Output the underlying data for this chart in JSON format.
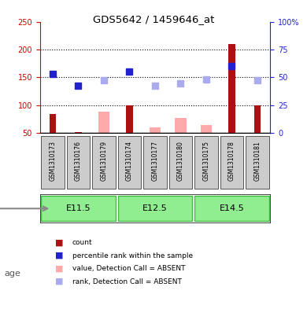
{
  "title": "GDS5642 / 1459646_at",
  "samples": [
    "GSM1310173",
    "GSM1310176",
    "GSM1310179",
    "GSM1310174",
    "GSM1310177",
    "GSM1310180",
    "GSM1310175",
    "GSM1310178",
    "GSM1310181"
  ],
  "age_groups": [
    {
      "label": "E11.5",
      "start": 0,
      "end": 3
    },
    {
      "label": "E12.5",
      "start": 3,
      "end": 6
    },
    {
      "label": "E14.5",
      "start": 6,
      "end": 9
    }
  ],
  "count_values": [
    85,
    52,
    50,
    100,
    50,
    50,
    50,
    210,
    100
  ],
  "count_color": "#aa1111",
  "percentile_values": [
    157,
    135,
    null,
    160,
    null,
    null,
    null,
    170,
    null
  ],
  "percentile_color": "#2222cc",
  "absent_value_values": [
    null,
    null,
    88,
    null,
    60,
    78,
    65,
    null,
    null
  ],
  "absent_value_color": "#ffaaaa",
  "absent_rank_values": [
    null,
    null,
    145,
    null,
    135,
    140,
    147,
    null,
    145
  ],
  "absent_rank_color": "#aaaaee",
  "ylim_left": [
    50,
    250
  ],
  "ylim_right": [
    0,
    100
  ],
  "left_ticks": [
    50,
    100,
    150,
    200,
    250
  ],
  "left_tick_labels": [
    "50",
    "100",
    "150",
    "200",
    "250"
  ],
  "right_ticks": [
    0,
    25,
    50,
    75,
    100
  ],
  "right_tick_labels": [
    "0",
    "25",
    "50",
    "75",
    "100%"
  ],
  "grid_lines": [
    100,
    150,
    200
  ],
  "left_axis_color": "#cc0000",
  "right_axis_color": "#2222cc",
  "age_label": "age",
  "age_group_color": "#90ee90",
  "age_group_border_color": "#44bb44",
  "sample_box_color": "#cccccc",
  "sample_box_border": "#555555",
  "legend_items": [
    {
      "label": "count",
      "color": "#aa1111",
      "marker": "s"
    },
    {
      "label": "percentile rank within the sample",
      "color": "#2222cc",
      "marker": "s"
    },
    {
      "label": "value, Detection Call = ABSENT",
      "color": "#ffaaaa",
      "marker": "s"
    },
    {
      "label": "rank, Detection Call = ABSENT",
      "color": "#aaaaee",
      "marker": "s"
    }
  ]
}
